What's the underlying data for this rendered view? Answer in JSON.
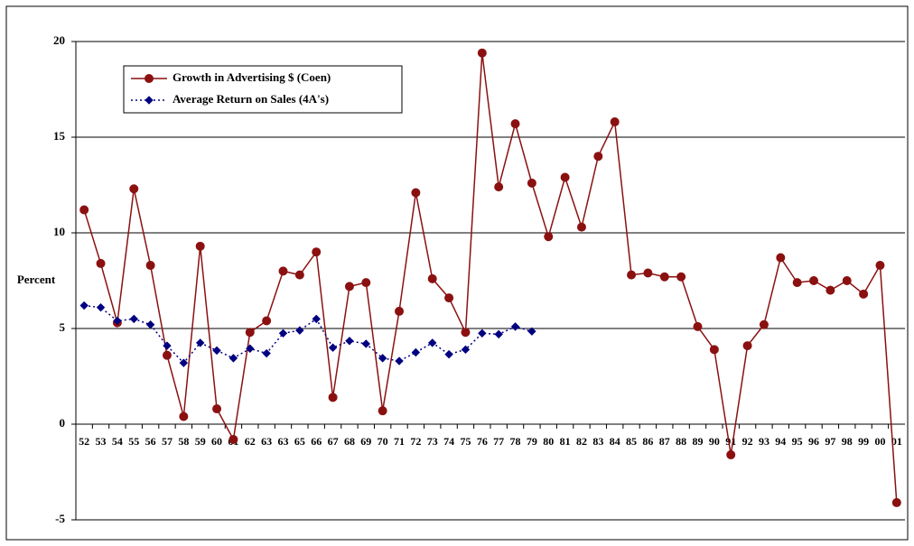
{
  "chart_data": {
    "type": "line",
    "y_label": "Percent",
    "categories": [
      "52",
      "53",
      "54",
      "55",
      "56",
      "57",
      "58",
      "59",
      "60",
      "61",
      "62",
      "63",
      "63",
      "65",
      "66",
      "67",
      "68",
      "69",
      "70",
      "71",
      "72",
      "73",
      "74",
      "75",
      "76",
      "77",
      "78",
      "79",
      "80",
      "81",
      "82",
      "83",
      "84",
      "85",
      "86",
      "87",
      "88",
      "89",
      "90",
      "91",
      "92",
      "93",
      "94",
      "95",
      "96",
      "97",
      "98",
      "99",
      "00",
      "01"
    ],
    "series": [
      {
        "name": "Growth in Advertising $ (Coen)",
        "color": "#8b1111",
        "marker": "circle",
        "line_style": "solid",
        "values": [
          11.2,
          8.4,
          5.3,
          12.3,
          8.3,
          3.6,
          0.4,
          9.3,
          0.8,
          -0.8,
          4.8,
          5.4,
          8.0,
          7.8,
          9.0,
          1.4,
          7.2,
          7.4,
          0.7,
          5.9,
          12.1,
          7.6,
          6.6,
          4.8,
          19.4,
          12.4,
          15.7,
          12.6,
          9.8,
          12.9,
          10.3,
          14.0,
          15.8,
          7.8,
          7.9,
          7.7,
          7.7,
          5.1,
          3.9,
          -1.6,
          4.1,
          5.2,
          8.7,
          7.4,
          7.5,
          7.0,
          7.5,
          6.8,
          8.3,
          -4.1
        ]
      },
      {
        "name": "Average Return on Sales (4A's)",
        "color": "#000080",
        "marker": "diamond",
        "line_style": "dotted",
        "values": [
          6.2,
          6.1,
          5.4,
          5.5,
          5.2,
          4.1,
          3.2,
          4.25,
          3.85,
          3.45,
          3.95,
          3.7,
          4.75,
          4.9,
          5.5,
          4.0,
          4.35,
          4.2,
          3.45,
          3.3,
          3.75,
          4.25,
          3.65,
          3.9,
          4.75,
          4.7,
          5.1,
          4.85,
          null,
          null,
          null,
          null,
          null,
          null,
          null,
          null,
          null,
          null,
          null,
          null,
          null,
          null,
          null,
          null,
          null,
          null,
          null,
          null,
          null,
          null
        ]
      }
    ],
    "ylim": [
      -5,
      20
    ],
    "yticks": [
      -5,
      0,
      5,
      10,
      15,
      20
    ],
    "grid": true,
    "legend": "top-left"
  }
}
